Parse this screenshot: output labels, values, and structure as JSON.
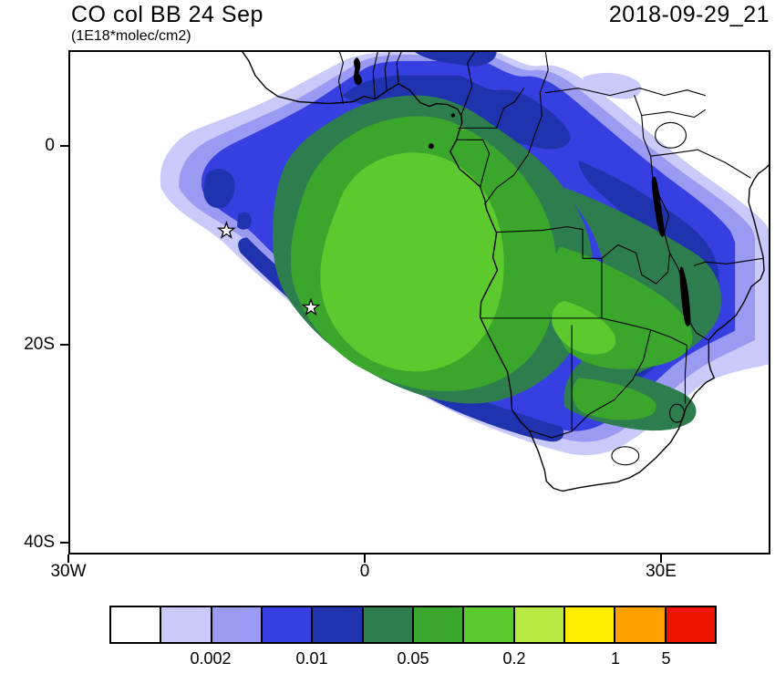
{
  "header": {
    "title": "CO col BB 24 Sep",
    "units": "(1E18*molec/cm2)",
    "datetime": "2018-09-29_21"
  },
  "axes": {
    "y_ticks": [
      {
        "label": "0",
        "lat": 0
      },
      {
        "label": "20S",
        "lat": -20
      },
      {
        "label": "40S",
        "lat": -40
      }
    ],
    "x_ticks": [
      {
        "label": "30W",
        "lon": -30
      },
      {
        "label": "0",
        "lon": 0
      },
      {
        "label": "30E",
        "lon": 30
      }
    ]
  },
  "markers": [
    {
      "type": "star",
      "lon": -14.1,
      "lat": -8.5
    },
    {
      "type": "star",
      "lon": -5.5,
      "lat": -16.3
    }
  ],
  "colorbar": {
    "colors": [
      "#ffffff",
      "#c9c9fa",
      "#9a9af2",
      "#3640e0",
      "#2033ae",
      "#2e7d4e",
      "#3aa62c",
      "#5cc92f",
      "#b8e943",
      "#ffec00",
      "#ffa100",
      "#ee1500"
    ],
    "labels": [
      {
        "text": "0.002",
        "boundary": 2
      },
      {
        "text": "0.01",
        "boundary": 4
      },
      {
        "text": "0.05",
        "boundary": 6
      },
      {
        "text": "0.2",
        "boundary": 8
      },
      {
        "text": "1",
        "boundary": 10
      },
      {
        "text": "5",
        "boundary": 11
      }
    ]
  },
  "chart_data": {
    "type": "heatmap",
    "title": "CO col BB 24 Sep",
    "units": "1E18*molec/cm2",
    "valid_time": "2018-09-29_21",
    "extent": {
      "lon_min": -30,
      "lon_max": 41,
      "lat_min": -41,
      "lat_max": 10
    },
    "n_color_bins": 12,
    "levels_labeled": [
      0.002,
      0.01,
      0.05,
      0.2,
      1,
      5
    ],
    "bin_colors": [
      "#ffffff",
      "#c9c9fa",
      "#9a9af2",
      "#3640e0",
      "#2033ae",
      "#2e7d4e",
      "#3aa62c",
      "#5cc92f",
      "#b8e943",
      "#ffec00",
      "#ffa100",
      "#ee1500"
    ],
    "station_markers_lonlat": [
      [
        -14.1,
        -8.5
      ],
      [
        -5.5,
        -16.3
      ]
    ],
    "summary": "Biomass-burning CO column plume over the South Atlantic and southern Africa; highest shaded bin (bright green, ~0.2-1) centered near 5W-10E / 5S-20S, grading outward through green, teal and blues to below 0.002 at the plume edge."
  }
}
